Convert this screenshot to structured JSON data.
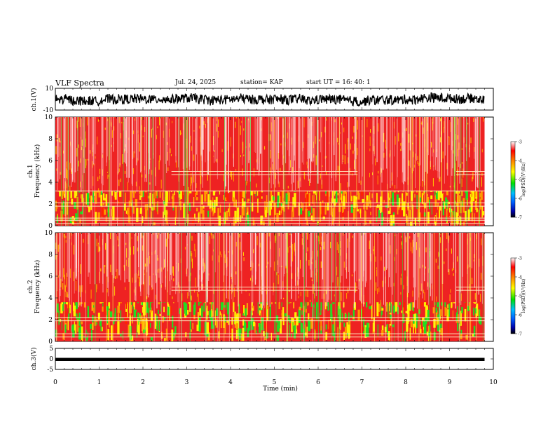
{
  "header": {
    "title": "VLF Spectra",
    "date": "Jul. 24, 2025",
    "station": "station= KAP",
    "start": "start  UT =    16: 40: 1"
  },
  "chart_data": [
    {
      "type": "line",
      "name": "ch1-waveform",
      "ylabel": "ch.1(V)",
      "ylim": [
        -10,
        10
      ],
      "yticks": [
        "10",
        "-10"
      ],
      "xlim": [
        0,
        10
      ],
      "plotted_until_min": 9.8
    },
    {
      "type": "heatmap",
      "name": "ch1-spectrogram",
      "ylabel_top": "ch.1",
      "ylabel": "Frequency (kHz)",
      "ylim": [
        0,
        10
      ],
      "yticks": [
        "0",
        "2",
        "4",
        "6",
        "8",
        "10"
      ],
      "xlim": [
        0,
        10
      ],
      "plotted_until_min": 9.8,
      "colorbar": {
        "label": "log(PSD)(V²/Hz)",
        "range": [
          -7,
          -3
        ],
        "ticks": [
          "-3",
          "-4",
          "-5",
          "-6",
          "-7"
        ]
      },
      "dominant_level": "high (red) above 3 kHz, mixed yellow/green below 3 kHz",
      "horizontal_lines_khz": [
        0.2,
        0.5,
        0.7,
        1.8,
        2.1,
        3.2,
        4.7,
        5.0
      ]
    },
    {
      "type": "heatmap",
      "name": "ch2-spectrogram",
      "ylabel_top": "ch.2",
      "ylabel": "Frequency (kHz)",
      "ylim": [
        0,
        10
      ],
      "yticks": [
        "0",
        "2",
        "4",
        "6",
        "8",
        "10"
      ],
      "xlim": [
        0,
        10
      ],
      "plotted_until_min": 9.8,
      "colorbar": {
        "label": "log(PSD)(V²/Hz)",
        "range": [
          -7,
          -3
        ],
        "ticks": [
          "-3",
          "-4",
          "-5",
          "-6",
          "-7"
        ]
      },
      "dominant_level": "high (red) above 3.5 kHz, strong green/yellow band 1-3 kHz",
      "horizontal_lines_khz": [
        0.4,
        0.7,
        1.9,
        2.2,
        4.7,
        5.0
      ]
    },
    {
      "type": "line",
      "name": "ch3-waveform",
      "ylabel": "ch.3(V)",
      "ylim": [
        -5,
        5
      ],
      "yticks": [
        "5",
        "0",
        "-5"
      ],
      "xlim": [
        0,
        10
      ],
      "plotted_until_min": 9.8,
      "signal_band_v": [
        -1,
        0.5
      ]
    }
  ],
  "xaxis": {
    "label": "Time  (min)",
    "ticks": [
      "0",
      "1",
      "2",
      "3",
      "4",
      "5",
      "6",
      "7",
      "8",
      "9",
      "10"
    ]
  }
}
